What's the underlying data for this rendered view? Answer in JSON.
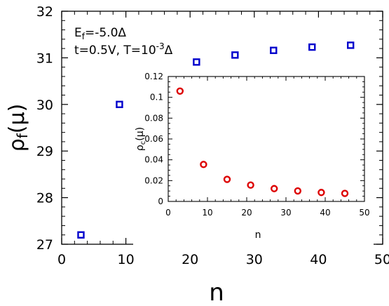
{
  "chart_data": [
    {
      "type": "scatter",
      "role": "main",
      "xlabel": "n",
      "ylabel_base": "ρ",
      "ylabel_sub": "f",
      "ylabel_suffix": "(μ)",
      "xlim": [
        0,
        50
      ],
      "ylim": [
        27,
        32
      ],
      "x_ticks": [
        0,
        10,
        20,
        30,
        40,
        50
      ],
      "y_ticks": [
        27,
        28,
        29,
        30,
        31,
        32
      ],
      "marker": "square",
      "color": "#0000cc",
      "grid": false,
      "points": [
        {
          "x": 3,
          "y": 27.2
        },
        {
          "x": 9,
          "y": 30.0
        },
        {
          "x": 15,
          "y": 30.63
        },
        {
          "x": 21,
          "y": 30.91
        },
        {
          "x": 27,
          "y": 31.06
        },
        {
          "x": 33,
          "y": 31.16
        },
        {
          "x": 39,
          "y": 31.23
        },
        {
          "x": 45,
          "y": 31.27
        }
      ],
      "annotation": {
        "line1_base": "E",
        "line1_sub": "f",
        "line1_rest": "=-5.0Δ",
        "line2_main": "t=0.5V, T=10",
        "line2_sup": "-3",
        "line2_tail": "Δ"
      }
    },
    {
      "type": "scatter",
      "role": "inset",
      "xlabel": "n",
      "ylabel_base": "ρ",
      "ylabel_sub": "c",
      "ylabel_suffix": "(μ)",
      "xlim": [
        0,
        50
      ],
      "ylim": [
        0,
        0.12
      ],
      "x_ticks": [
        0,
        10,
        20,
        30,
        40,
        50
      ],
      "y_ticks": [
        0,
        0.02,
        0.04,
        0.06,
        0.08,
        0.1,
        0.12
      ],
      "x_tick_labels": [
        "0",
        "10",
        "20",
        "30",
        "40",
        "50"
      ],
      "y_tick_labels": [
        "0",
        "0.02",
        "0.04",
        "0.06",
        "0.08",
        "0.1",
        "0.12"
      ],
      "marker": "circle",
      "color": "#dd0000",
      "grid": false,
      "points": [
        {
          "x": 3,
          "y": 0.106
        },
        {
          "x": 9,
          "y": 0.0355
        },
        {
          "x": 15,
          "y": 0.0212
        },
        {
          "x": 21,
          "y": 0.0157
        },
        {
          "x": 27,
          "y": 0.0123
        },
        {
          "x": 33,
          "y": 0.0101
        },
        {
          "x": 39,
          "y": 0.0086
        },
        {
          "x": 45,
          "y": 0.0077
        }
      ]
    }
  ]
}
